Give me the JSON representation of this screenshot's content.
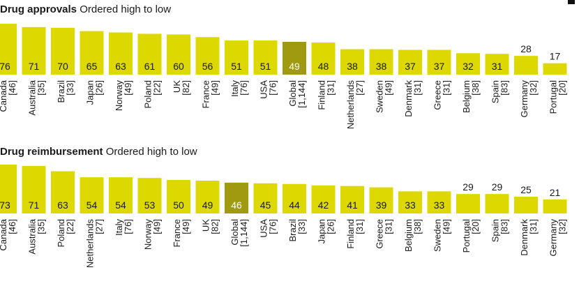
{
  "colors": {
    "bar": "#dcd800",
    "highlight": "#a09a10",
    "value_text": "#1a1a1a",
    "highlight_text": "#ffffff",
    "label_text": "#1a1a1a"
  },
  "chart_data": [
    {
      "type": "bar",
      "title": "Drug approvals",
      "subtitle": "Ordered high to low",
      "highlight": "Global",
      "categories": [
        {
          "name": "Canada",
          "n": "[46]"
        },
        {
          "name": "Australia",
          "n": "[35]"
        },
        {
          "name": "Brazil",
          "n": "[33]"
        },
        {
          "name": "Japan",
          "n": "[26]"
        },
        {
          "name": "Norway",
          "n": "[49]"
        },
        {
          "name": "Poland",
          "n": "[22]"
        },
        {
          "name": "UK",
          "n": "[82]"
        },
        {
          "name": "France",
          "n": "[49]"
        },
        {
          "name": "Italy",
          "n": "[76]"
        },
        {
          "name": "USA",
          "n": "[76]"
        },
        {
          "name": "Global",
          "n": "[1,144]"
        },
        {
          "name": "Finland",
          "n": "[31]"
        },
        {
          "name": "Netherlands",
          "n": "[27]"
        },
        {
          "name": "Sweden",
          "n": "[49]"
        },
        {
          "name": "Denmark",
          "n": "[31]"
        },
        {
          "name": "Greece",
          "n": "[31]"
        },
        {
          "name": "Belgium",
          "n": "[38]"
        },
        {
          "name": "Spain",
          "n": "[83]"
        },
        {
          "name": "Germany",
          "n": "[32]"
        },
        {
          "name": "Portugal",
          "n": "[20]"
        }
      ],
      "values": [
        76,
        71,
        70,
        65,
        63,
        61,
        60,
        56,
        51,
        51,
        49,
        48,
        38,
        38,
        37,
        37,
        32,
        31,
        28,
        17
      ]
    },
    {
      "type": "bar",
      "title": "Drug reimbursement",
      "subtitle": "Ordered high to low",
      "highlight": "Global",
      "categories": [
        {
          "name": "Canada",
          "n": "[46]"
        },
        {
          "name": "Australia",
          "n": "[35]"
        },
        {
          "name": "Poland",
          "n": "[22]"
        },
        {
          "name": "Netherlands",
          "n": "[27]"
        },
        {
          "name": "Italy",
          "n": "[76]"
        },
        {
          "name": "Norway",
          "n": "[49]"
        },
        {
          "name": "France",
          "n": "[49]"
        },
        {
          "name": "UK",
          "n": "[82]"
        },
        {
          "name": "Global",
          "n": "[1,144]"
        },
        {
          "name": "USA",
          "n": "[76]"
        },
        {
          "name": "Brazil",
          "n": "[33]"
        },
        {
          "name": "Japan",
          "n": "[26]"
        },
        {
          "name": "Finland",
          "n": "[31]"
        },
        {
          "name": "Greece",
          "n": "[31]"
        },
        {
          "name": "Belgium",
          "n": "[38]"
        },
        {
          "name": "Sweden",
          "n": "[49]"
        },
        {
          "name": "Portugal",
          "n": "[20]"
        },
        {
          "name": "Spain",
          "n": "[83]"
        },
        {
          "name": "Denmark",
          "n": "[31]"
        },
        {
          "name": "Germany",
          "n": "[32]"
        }
      ],
      "values": [
        73,
        71,
        63,
        54,
        54,
        53,
        50,
        49,
        46,
        45,
        44,
        42,
        41,
        39,
        33,
        33,
        29,
        29,
        25,
        21
      ]
    }
  ]
}
